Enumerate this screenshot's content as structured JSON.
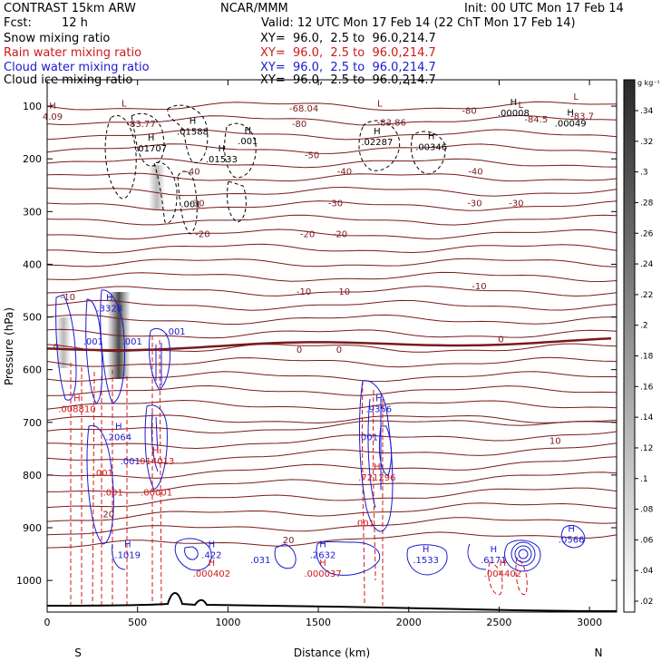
{
  "header": {
    "model": "CONTRAST 15km ARW",
    "center": "NCAR/MMM",
    "init": "Init: 00 UTC Mon 17 Feb 14",
    "fcst_label": "Fcst:",
    "fcst_value": "12 h",
    "valid": "Valid: 12 UTC Mon 17 Feb 14 (22 ChT Mon 17 Feb 14)"
  },
  "fields": [
    {
      "name": "Snow mixing ratio",
      "xy": "XY=  96.0,  2.5 to  96.0,214.7",
      "color": "#000000"
    },
    {
      "name": "Rain water mixing ratio",
      "xy": "XY=  96.0,  2.5 to  96.0,214.7",
      "color": "#d01818"
    },
    {
      "name": "Cloud water mixing ratio",
      "xy": "XY=  96.0,  2.5 to  96.0,214.7",
      "color": "#1a1ad0"
    },
    {
      "name": "Cloud ice mixing ratio",
      "xy": "XY=  96.0,  2.5 to  96.0,214.7",
      "color": "#000000"
    }
  ],
  "chart_data": {
    "type": "contour-cross-section",
    "xlabel": "Distance (km)",
    "ylabel": "Pressure (hPa)",
    "x_ticks": [
      0,
      500,
      1000,
      1500,
      2000,
      2500,
      3000
    ],
    "y_ticks": [
      100,
      200,
      300,
      400,
      500,
      600,
      700,
      800,
      900,
      1000
    ],
    "xlim": [
      0,
      3150
    ],
    "ylim": [
      50,
      1060
    ],
    "end_labels": {
      "left": "S",
      "right": "N"
    },
    "colorbar": {
      "unit": "g kg⁻¹",
      "ticks": [
        ".02",
        ".04",
        ".06",
        ".08",
        ".1",
        ".12",
        ".14",
        ".16",
        ".18",
        ".2",
        ".22",
        ".24",
        ".26",
        ".28",
        ".3",
        ".32",
        ".34"
      ]
    },
    "temperature_contour_labels": [
      {
        "text": "-68.04",
        "x": 1420,
        "p": 103
      },
      {
        "text": "-80",
        "x": 2335,
        "p": 108
      },
      {
        "text": "-83.7",
        "x": 2960,
        "p": 118
      },
      {
        "text": "-84.5",
        "x": 2705,
        "p": 124
      },
      {
        "text": "-83.77",
        "x": 520,
        "p": 133
      },
      {
        "text": "-83.86",
        "x": 1905,
        "p": 130
      },
      {
        "text": "-80",
        "x": 1395,
        "p": 133
      },
      {
        "text": "-50",
        "x": 1465,
        "p": 192
      },
      {
        "text": "-40",
        "x": 805,
        "p": 223
      },
      {
        "text": "-40",
        "x": 1645,
        "p": 223
      },
      {
        "text": "-40",
        "x": 2370,
        "p": 223
      },
      {
        "text": "-30",
        "x": 830,
        "p": 283
      },
      {
        "text": "-30",
        "x": 1595,
        "p": 283
      },
      {
        "text": "-30",
        "x": 2365,
        "p": 283
      },
      {
        "text": "-30",
        "x": 2595,
        "p": 283
      },
      {
        "text": "-20",
        "x": 860,
        "p": 342
      },
      {
        "text": "-20",
        "x": 1440,
        "p": 342
      },
      {
        "text": "-20",
        "x": 1620,
        "p": 342
      },
      {
        "text": "-10",
        "x": 115,
        "p": 461
      },
      {
        "text": "-10",
        "x": 1420,
        "p": 451
      },
      {
        "text": "-10",
        "x": 1635,
        "p": 451
      },
      {
        "text": "-10",
        "x": 2390,
        "p": 441
      },
      {
        "text": "0",
        "x": 50,
        "p": 556
      },
      {
        "text": "0",
        "x": 1395,
        "p": 561
      },
      {
        "text": "0",
        "x": 1615,
        "p": 561
      },
      {
        "text": "0",
        "x": 2510,
        "p": 541
      },
      {
        "text": "10",
        "x": 2810,
        "p": 734
      },
      {
        "text": "20",
        "x": 340,
        "p": 873
      },
      {
        "text": "20",
        "x": 1335,
        "p": 922
      }
    ],
    "max_labels": [
      {
        "text": "H",
        "sub": "4.09",
        "x": 30,
        "p": 112,
        "color": "#7a1a1a"
      },
      {
        "text": "L",
        "sub": "",
        "x": 2620,
        "p": 110,
        "color": "#7a1a1a"
      },
      {
        "text": "L",
        "sub": "",
        "x": 2925,
        "p": 95,
        "color": "#7a1a1a"
      },
      {
        "text": "L",
        "sub": "",
        "x": 425,
        "p": 108,
        "color": "#7a1a1a"
      },
      {
        "text": "L",
        "sub": "",
        "x": 1840,
        "p": 108,
        "color": "#7a1a1a"
      },
      {
        "text": "H",
        "sub": ".01588",
        "x": 805,
        "p": 140,
        "color": "#000000"
      },
      {
        "text": "H",
        "sub": ".001",
        "x": 1110,
        "p": 158,
        "color": "#000000"
      },
      {
        "text": "H",
        "sub": ".01707",
        "x": 575,
        "p": 172,
        "color": "#000000"
      },
      {
        "text": "H",
        "sub": ".01533",
        "x": 965,
        "p": 193,
        "color": "#000000"
      },
      {
        "text": "H",
        "sub": ".00008",
        "x": 2580,
        "p": 105,
        "color": "#000000"
      },
      {
        "text": "H",
        "sub": ".00049",
        "x": 2895,
        "p": 125,
        "color": "#000000"
      },
      {
        "text": "H",
        "sub": ".02287",
        "x": 1825,
        "p": 160,
        "color": "#000000"
      },
      {
        "text": "H",
        "sub": ".00346",
        "x": 2125,
        "p": 170,
        "color": "#000000"
      },
      {
        "text": "",
        "sub": ".001",
        "x": 795,
        "p": 278,
        "color": "#000000"
      },
      {
        "text": "H",
        "sub": ".3328",
        "x": 345,
        "p": 476,
        "color": "#1a1ad0"
      },
      {
        "text": "",
        "sub": ".001",
        "x": 255,
        "p": 539,
        "color": "#1a1ad0"
      },
      {
        "text": "",
        "sub": ".001",
        "x": 470,
        "p": 539,
        "color": "#1a1ad0"
      },
      {
        "text": "",
        "sub": ".001",
        "x": 710,
        "p": 520,
        "color": "#1a1ad0"
      },
      {
        "text": "H",
        "sub": ".008810",
        "x": 165,
        "p": 667,
        "color": "#d01818"
      },
      {
        "text": "H",
        "sub": ".2064",
        "x": 395,
        "p": 720,
        "color": "#1a1ad0"
      },
      {
        "text": "",
        "sub": ".001",
        "x": 460,
        "p": 766,
        "color": "#1a1ad0"
      },
      {
        "text": "H",
        "sub": ".014013",
        "x": 600,
        "p": 766,
        "color": "#d01818"
      },
      {
        "text": "",
        "sub": ".001",
        "x": 310,
        "p": 788,
        "color": "#d01818"
      },
      {
        "text": "",
        "sub": ".001",
        "x": 365,
        "p": 825,
        "color": "#d01818"
      },
      {
        "text": "",
        "sub": ".00001",
        "x": 605,
        "p": 825,
        "color": "#d01818"
      },
      {
        "text": "H",
        "sub": ".1019",
        "x": 445,
        "p": 944,
        "color": "#1a1ad0"
      },
      {
        "text": "H",
        "sub": ".422",
        "x": 910,
        "p": 944,
        "color": "#1a1ad0"
      },
      {
        "text": "H",
        "sub": ".000402",
        "x": 910,
        "p": 979,
        "color": "#d01818"
      },
      {
        "text": "",
        "sub": ".031",
        "x": 1180,
        "p": 953,
        "color": "#1a1ad0"
      },
      {
        "text": "H",
        "sub": ".2632",
        "x": 1525,
        "p": 944,
        "color": "#1a1ad0"
      },
      {
        "text": "H",
        "sub": ".000037",
        "x": 1525,
        "p": 979,
        "color": "#d01818"
      },
      {
        "text": "H",
        "sub": ".9356",
        "x": 1835,
        "p": 667,
        "color": "#1a1ad0"
      },
      {
        "text": "",
        "sub": ".001",
        "x": 1775,
        "p": 720,
        "color": "#1a1ad0"
      },
      {
        "text": "H",
        "sub": ".721296",
        "x": 1825,
        "p": 797,
        "color": "#d01818"
      },
      {
        "text": "",
        "sub": ".001",
        "x": 1755,
        "p": 884,
        "color": "#d01818"
      },
      {
        "text": "H",
        "sub": ".1533",
        "x": 2095,
        "p": 953,
        "color": "#1a1ad0"
      },
      {
        "text": "H",
        "sub": ".6171",
        "x": 2470,
        "p": 953,
        "color": "#1a1ad0"
      },
      {
        "text": "H",
        "sub": ".004402",
        "x": 2520,
        "p": 979,
        "color": "#d01818"
      },
      {
        "text": "H",
        "sub": ".0566",
        "x": 2900,
        "p": 915,
        "color": "#1a1ad0"
      }
    ]
  }
}
